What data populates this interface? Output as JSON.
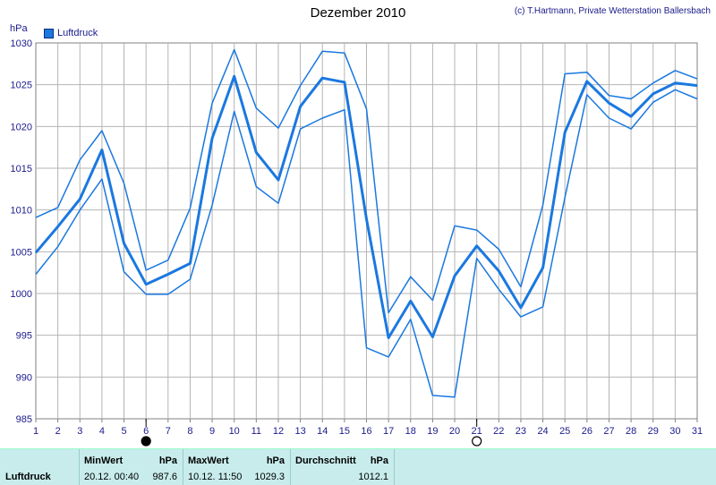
{
  "header": {
    "title": "Dezember 2010",
    "copyright": "(c) T.Hartmann, Private Wetterstation Ballersbach",
    "unit": "hPa",
    "legend_label": "Luftdruck"
  },
  "colors": {
    "series": "#1a78e0",
    "grid": "#b4b4b4",
    "text": "#1a1a8c",
    "footer_bg": "#c8ecec"
  },
  "markers": [
    {
      "day": 6,
      "icon": "full-moon-icon"
    },
    {
      "day": 21,
      "icon": "new-moon-icon"
    }
  ],
  "chart_data": {
    "type": "line",
    "title": "Dezember 2010",
    "ylabel": "hPa",
    "ylim": [
      985,
      1030
    ],
    "yticks": [
      985,
      990,
      995,
      1000,
      1005,
      1010,
      1015,
      1020,
      1025,
      1030
    ],
    "x": [
      1,
      2,
      3,
      4,
      5,
      6,
      7,
      8,
      9,
      10,
      11,
      12,
      13,
      14,
      15,
      16,
      17,
      18,
      19,
      20,
      21,
      22,
      23,
      24,
      25,
      26,
      27,
      28,
      29,
      30,
      31
    ],
    "grid": true,
    "legend": "top-left",
    "series": [
      {
        "name": "Luftdruck",
        "role": "max",
        "values": [
          1009.1,
          1010.3,
          1016.0,
          1019.5,
          1013.2,
          1002.8,
          1004.0,
          1010.2,
          1022.8,
          1029.2,
          1022.2,
          1019.8,
          1024.9,
          1029.0,
          1028.8,
          1022.1,
          997.7,
          1002.0,
          999.2,
          1008.1,
          1007.6,
          1005.3,
          1000.8,
          1010.6,
          1026.3,
          1026.5,
          1023.7,
          1023.3,
          1025.2,
          1026.7,
          1025.7
        ]
      },
      {
        "name": "Luftdruck",
        "role": "avg",
        "values": [
          1004.9,
          1008.0,
          1011.3,
          1017.2,
          1006.0,
          1001.1,
          1002.3,
          1003.6,
          1018.6,
          1026.0,
          1016.9,
          1013.6,
          1022.4,
          1025.8,
          1025.3,
          1008.9,
          994.7,
          999.1,
          994.8,
          1002.1,
          1005.7,
          1002.7,
          998.3,
          1003.1,
          1019.3,
          1025.4,
          1022.8,
          1021.2,
          1023.9,
          1025.2,
          1024.9
        ]
      },
      {
        "name": "Luftdruck",
        "role": "min",
        "values": [
          1002.3,
          1005.6,
          1010.0,
          1013.7,
          1002.6,
          999.9,
          999.9,
          1001.7,
          1010.6,
          1021.8,
          1012.8,
          1010.8,
          1019.7,
          1021.0,
          1022.0,
          993.5,
          992.4,
          996.9,
          987.8,
          987.6,
          1004.2,
          1000.5,
          997.2,
          998.4,
          1011.5,
          1023.8,
          1021.0,
          1019.7,
          1022.9,
          1024.4,
          1023.3
        ]
      }
    ]
  },
  "stats": {
    "row_label": "Luftdruck",
    "min": {
      "label": "MinWert",
      "unit": "hPa",
      "time": "20.12.  00:40",
      "value": "987.6"
    },
    "max": {
      "label": "MaxWert",
      "unit": "hPa",
      "time": "10.12.  11:50",
      "value": "1029.3"
    },
    "avg": {
      "label": "Durchschnitt",
      "unit": "hPa",
      "value": "1012.1"
    }
  }
}
